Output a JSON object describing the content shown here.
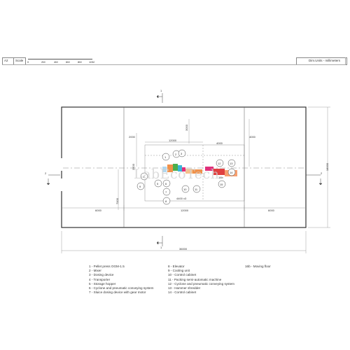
{
  "header": {
    "sheet": "A2",
    "scale_label": "Scale",
    "scale_ticks": [
      "0",
      "2M",
      "4M",
      "6M",
      "8M",
      "10M"
    ],
    "units_label": "Dim.Units - millimeters"
  },
  "section_labels": {
    "top": "1",
    "bottom": "1",
    "left": "2",
    "right": "2"
  },
  "dimensions": {
    "bottom_overall": "36000",
    "bottom_left": "6000",
    "bottom_mid": "12000",
    "bottom_right": "6000",
    "top_span": "12000",
    "top_inner_a": "2000",
    "top_inner_b": "4000",
    "right_overall": "18000",
    "left_overall": "7000",
    "small_a": "3000",
    "small_b": "4000",
    "small_c": "3500",
    "under_equipment": "4400 x3"
  },
  "equipment_markers": [
    "1",
    "2",
    "3",
    "4",
    "5",
    "6",
    "7",
    "8",
    "9",
    "10",
    "11",
    "12",
    "13",
    "14",
    "15",
    "16b"
  ],
  "legend": {
    "col1": [
      "1 - Pellet press OGM-1.5",
      "2 - Mixer",
      "3 - Dosing device",
      "4 - Transporter",
      "5 - Storage hopper",
      "6 - Cyclone and pneumatic conveying system",
      "7 - Sluice dosing device with gear motor"
    ],
    "col2": [
      "8 - Elevator",
      "9 - Cooling unit",
      "10 - Control cabinet",
      "11 - Packing semi-automatic machine",
      "12 - Cyclone and pneumatic conveying system",
      "13 - Hammer shredder",
      "14 - Control cabinet"
    ],
    "col3": [
      "16b - Moving floor"
    ]
  },
  "watermark": "LabEcoTech",
  "colors": {
    "line": "#3a3a3a",
    "dim": "#777777",
    "accent_orange": "#f0914a",
    "accent_green": "#4cae4c",
    "accent_cyan": "#3ab5d8",
    "accent_pink": "#e0307a",
    "accent_red": "#e04040"
  }
}
